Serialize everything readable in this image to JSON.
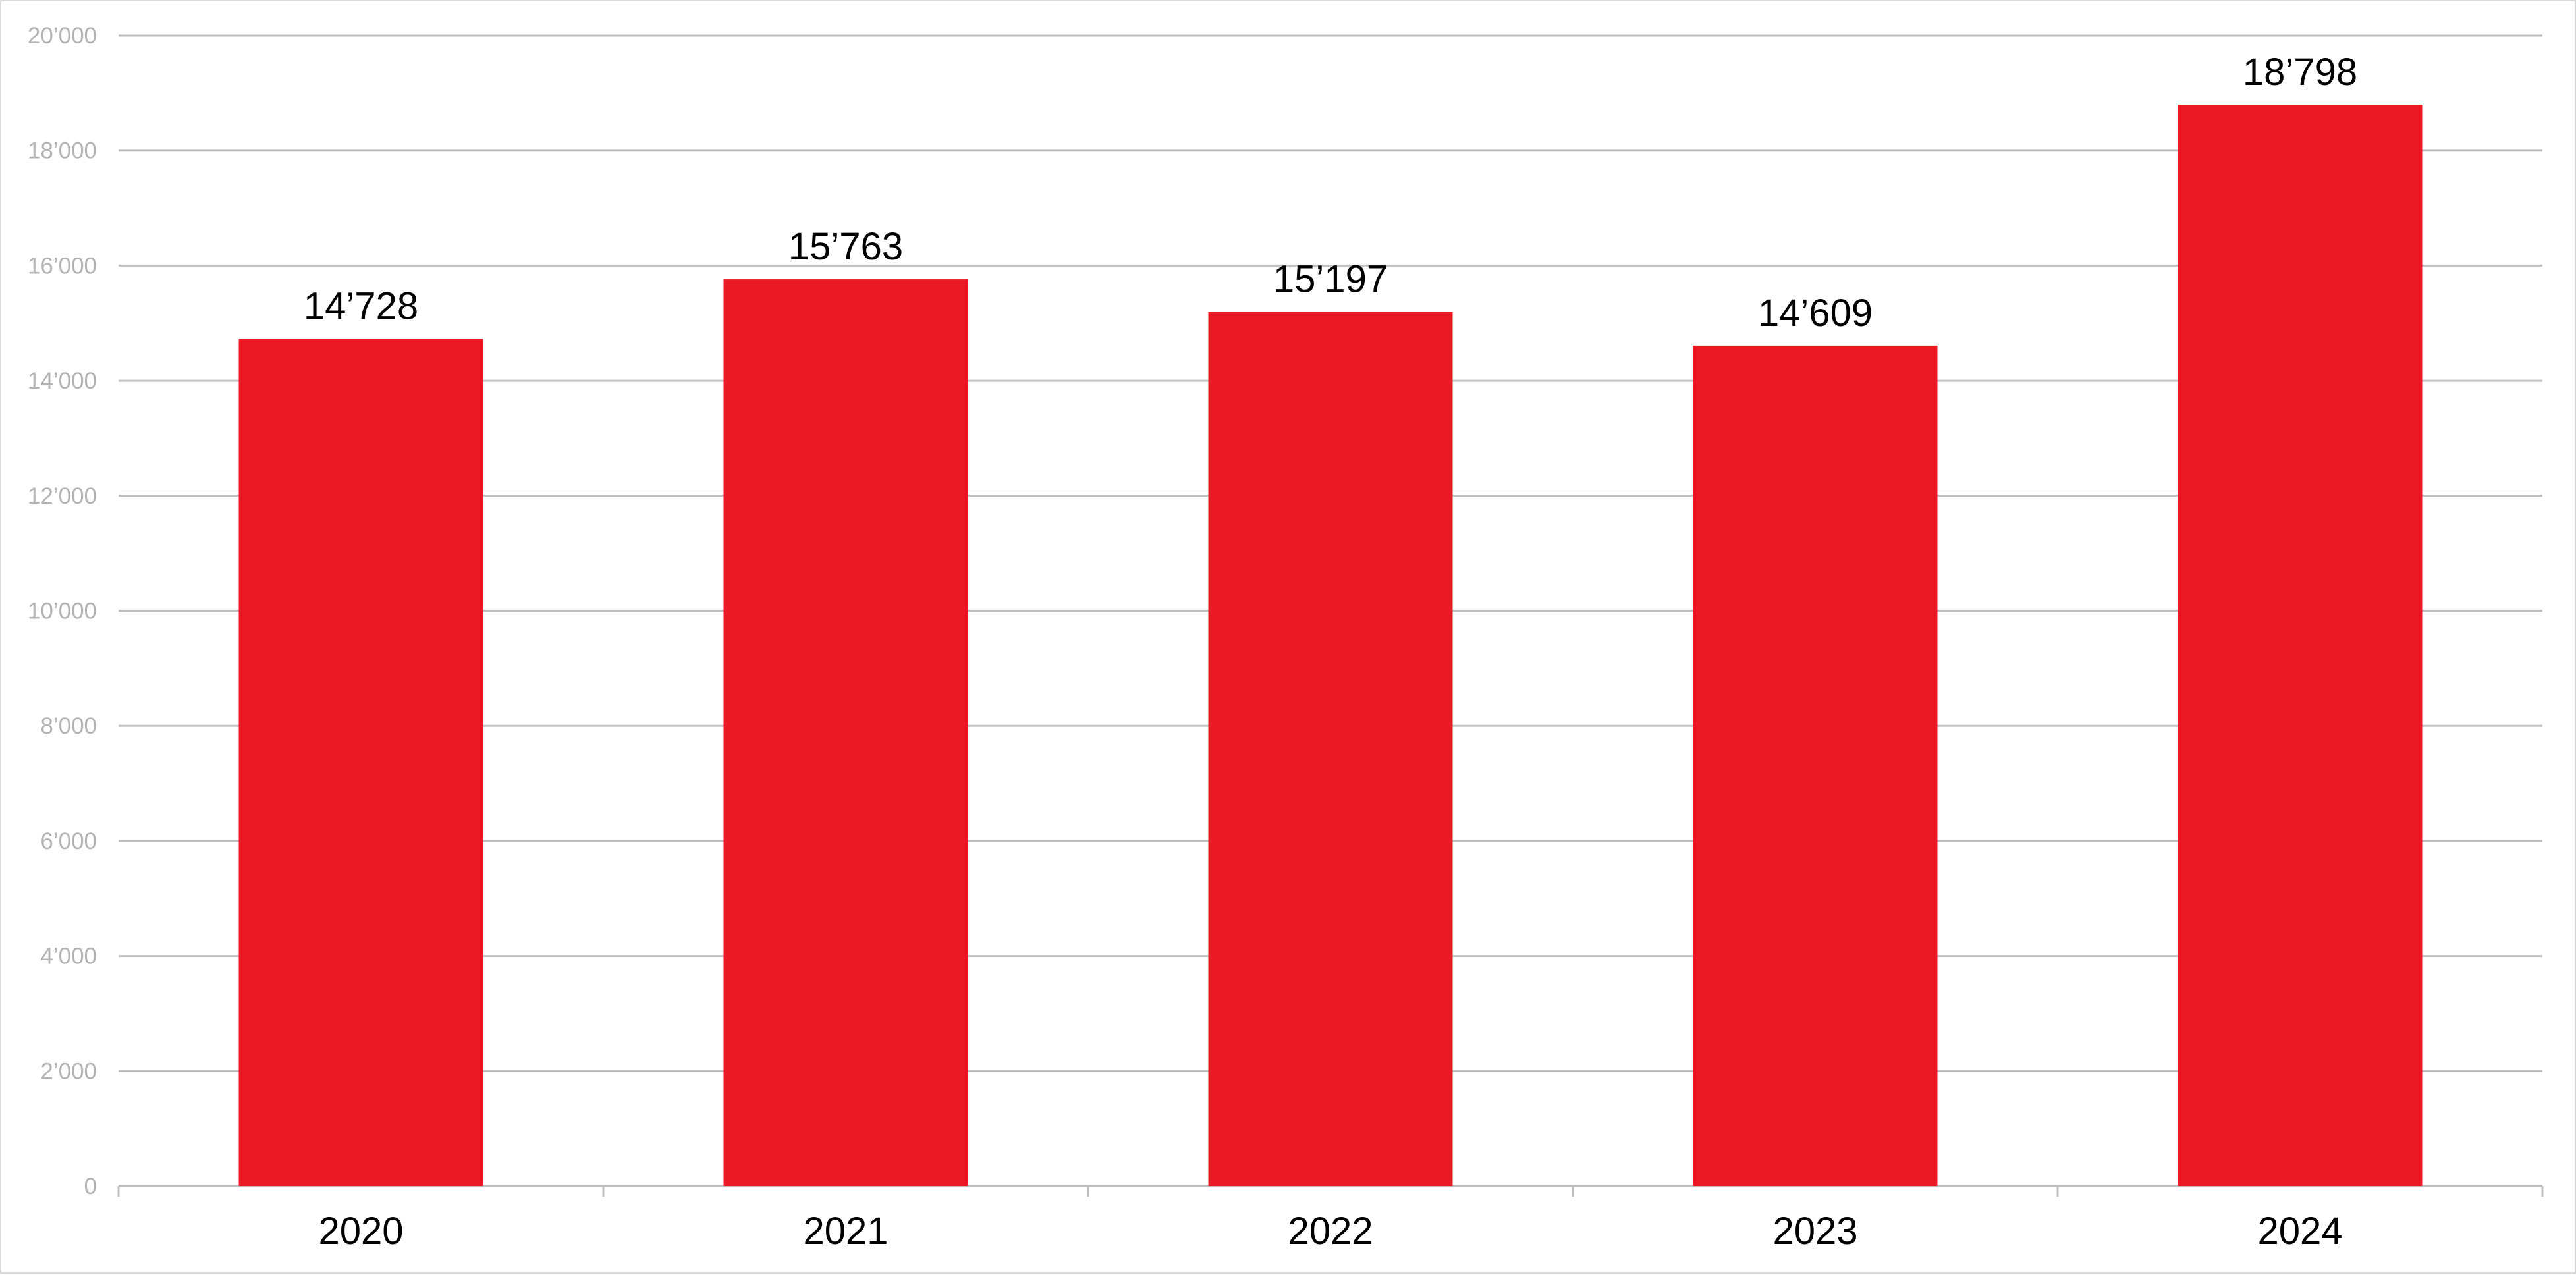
{
  "chart_data": {
    "type": "bar",
    "title": "",
    "xlabel": "",
    "ylabel": "",
    "categories": [
      "2020",
      "2021",
      "2022",
      "2023",
      "2024"
    ],
    "values": [
      14728,
      15763,
      15197,
      14609,
      18798
    ],
    "data_labels": [
      "14’728",
      "15’763",
      "15’197",
      "14’609",
      "18’798"
    ],
    "ylim": [
      0,
      20000
    ],
    "yticks": [
      0,
      2000,
      4000,
      6000,
      8000,
      10000,
      12000,
      14000,
      16000,
      18000,
      20000
    ],
    "ytick_labels": [
      "0",
      "2’000",
      "4’000",
      "6’000",
      "8’000",
      "10’000",
      "12’000",
      "14’000",
      "16’000",
      "18’000",
      "20’000"
    ],
    "grid": true,
    "legend": "none",
    "colors": {
      "bar": "#e91822",
      "grid": "#bfbfbf",
      "axis_text": "#b3b3b3",
      "label_text": "#000000"
    }
  }
}
